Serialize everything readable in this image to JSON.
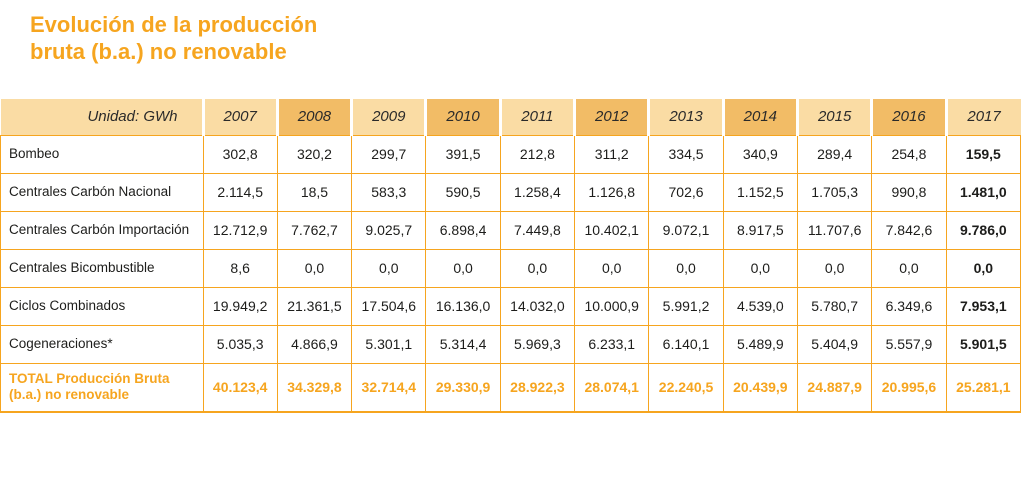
{
  "title": {
    "line1": "Evolución de la producción",
    "line2": "bruta (b.a.) no renovable"
  },
  "table": {
    "unit_label": "Unidad: GWh",
    "years": [
      "2007",
      "2008",
      "2009",
      "2010",
      "2011",
      "2012",
      "2013",
      "2014",
      "2015",
      "2016",
      "2017"
    ],
    "rows": [
      {
        "label": "Bombeo",
        "values": [
          "302,8",
          "320,2",
          "299,7",
          "391,5",
          "212,8",
          "311,2",
          "334,5",
          "340,9",
          "289,4",
          "254,8",
          "159,5"
        ]
      },
      {
        "label": "Centrales Carbón Nacional",
        "values": [
          "2.114,5",
          "18,5",
          "583,3",
          "590,5",
          "1.258,4",
          "1.126,8",
          "702,6",
          "1.152,5",
          "1.705,3",
          "990,8",
          "1.481,0"
        ]
      },
      {
        "label": "Centrales Carbón Importación",
        "values": [
          "12.712,9",
          "7.762,7",
          "9.025,7",
          "6.898,4",
          "7.449,8",
          "10.402,1",
          "9.072,1",
          "8.917,5",
          "11.707,6",
          "7.842,6",
          "9.786,0"
        ]
      },
      {
        "label": "Centrales Bicombustible",
        "values": [
          "8,6",
          "0,0",
          "0,0",
          "0,0",
          "0,0",
          "0,0",
          "0,0",
          "0,0",
          "0,0",
          "0,0",
          "0,0"
        ]
      },
      {
        "label": "Ciclos Combinados",
        "values": [
          "19.949,2",
          "21.361,5",
          "17.504,6",
          "16.136,0",
          "14.032,0",
          "10.000,9",
          "5.991,2",
          "4.539,0",
          "5.780,7",
          "6.349,6",
          "7.953,1"
        ]
      },
      {
        "label": "Cogeneraciones*",
        "values": [
          "5.035,3",
          "4.866,9",
          "5.301,1",
          "5.314,4",
          "5.969,3",
          "6.233,1",
          "6.140,1",
          "5.489,9",
          "5.404,9",
          "5.557,9",
          "5.901,5"
        ]
      }
    ],
    "total_row": {
      "label": "TOTAL Producción Bruta (b.a.) no renovable",
      "values": [
        "40.123,4",
        "34.329,8",
        "32.714,4",
        "29.330,9",
        "28.922,3",
        "28.074,1",
        "22.240,5",
        "20.439,9",
        "24.887,9",
        "20.995,6",
        "25.281,1"
      ]
    }
  },
  "colors": {
    "accent_orange": "#F6A51F",
    "header_light": "#FADCA4",
    "header_dark": "#F2BC66",
    "body_text": "#1D1D1B"
  },
  "chart_data": {
    "type": "table",
    "title": "Evolución de la producción bruta (b.a.) no renovable",
    "unit": "GWh",
    "x": [
      2007,
      2008,
      2009,
      2010,
      2011,
      2012,
      2013,
      2014,
      2015,
      2016,
      2017
    ],
    "series": [
      {
        "name": "Bombeo",
        "values": [
          302.8,
          320.2,
          299.7,
          391.5,
          212.8,
          311.2,
          334.5,
          340.9,
          289.4,
          254.8,
          159.5
        ]
      },
      {
        "name": "Centrales Carbón Nacional",
        "values": [
          2114.5,
          18.5,
          583.3,
          590.5,
          1258.4,
          1126.8,
          702.6,
          1152.5,
          1705.3,
          990.8,
          1481.0
        ]
      },
      {
        "name": "Centrales Carbón Importación",
        "values": [
          12712.9,
          7762.7,
          9025.7,
          6898.4,
          7449.8,
          10402.1,
          9072.1,
          8917.5,
          11707.6,
          7842.6,
          9786.0
        ]
      },
      {
        "name": "Centrales Bicombustible",
        "values": [
          8.6,
          0,
          0,
          0,
          0,
          0,
          0,
          0,
          0,
          0,
          0
        ]
      },
      {
        "name": "Ciclos Combinados",
        "values": [
          19949.2,
          21361.5,
          17504.6,
          16136.0,
          14032.0,
          10000.9,
          5991.2,
          4539.0,
          5780.7,
          6349.6,
          7953.1
        ]
      },
      {
        "name": "Cogeneraciones*",
        "values": [
          5035.3,
          4866.9,
          5301.1,
          5314.4,
          5969.3,
          6233.1,
          6140.1,
          5489.9,
          5404.9,
          5557.9,
          5901.5
        ]
      },
      {
        "name": "TOTAL Producción Bruta (b.a.) no renovable",
        "values": [
          40123.4,
          34329.8,
          32714.4,
          29330.9,
          28922.3,
          28074.1,
          22240.5,
          20439.9,
          24887.9,
          20995.6,
          25281.1
        ]
      }
    ]
  }
}
